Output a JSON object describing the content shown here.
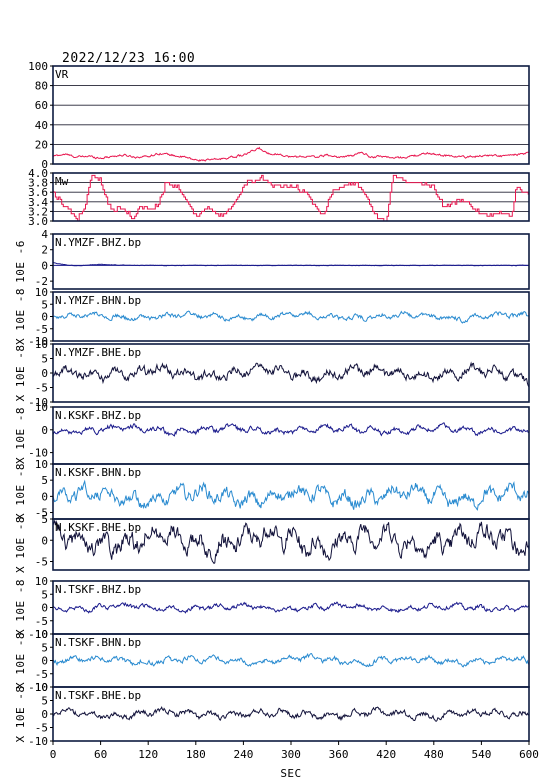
{
  "header": {
    "datetime": "2022/12/23 16:00"
  },
  "chart_data": {
    "type": "line",
    "x": {
      "label": "SEC",
      "lim": [
        0,
        600
      ],
      "ticks": [
        0,
        60,
        120,
        180,
        240,
        300,
        360,
        420,
        480,
        540,
        600
      ]
    },
    "colors": {
      "red": "#e8174f",
      "navy": "#1a1a8c",
      "blue": "#2a8bd0",
      "dark": "#12123a",
      "frame": "#0d1a40"
    },
    "panels": [
      {
        "label": "VR",
        "ylim": [
          0,
          100
        ],
        "yticks": [
          "100",
          "80",
          "60",
          "40",
          "20",
          "0"
        ],
        "ytickvals": [
          100,
          80,
          60,
          40,
          20,
          0
        ],
        "grid": true,
        "unit": "",
        "color": "red",
        "knots": [
          [
            0,
            8
          ],
          [
            15,
            10
          ],
          [
            30,
            7
          ],
          [
            45,
            8
          ],
          [
            60,
            6
          ],
          [
            75,
            8
          ],
          [
            90,
            9
          ],
          [
            105,
            7
          ],
          [
            120,
            8
          ],
          [
            135,
            11
          ],
          [
            150,
            9
          ],
          [
            165,
            7
          ],
          [
            180,
            4
          ],
          [
            195,
            4
          ],
          [
            210,
            5
          ],
          [
            225,
            7
          ],
          [
            240,
            9
          ],
          [
            260,
            16
          ],
          [
            270,
            11
          ],
          [
            285,
            10
          ],
          [
            300,
            7
          ],
          [
            315,
            8
          ],
          [
            330,
            7
          ],
          [
            345,
            9
          ],
          [
            360,
            7
          ],
          [
            375,
            8
          ],
          [
            390,
            12
          ],
          [
            400,
            7
          ],
          [
            415,
            8
          ],
          [
            430,
            6
          ],
          [
            445,
            7
          ],
          [
            460,
            9
          ],
          [
            475,
            11
          ],
          [
            490,
            9
          ],
          [
            505,
            8
          ],
          [
            520,
            7
          ],
          [
            535,
            8
          ],
          [
            550,
            9
          ],
          [
            565,
            8
          ],
          [
            580,
            9
          ],
          [
            600,
            11
          ]
        ],
        "noise": 1.2
      },
      {
        "label": "Mw",
        "ylim": [
          3.0,
          4.0
        ],
        "yticks": [
          "4.0",
          "3.8",
          "3.6",
          "3.4",
          "3.2",
          "3.0"
        ],
        "ytickvals": [
          4.0,
          3.8,
          3.6,
          3.4,
          3.2,
          3.0
        ],
        "grid": true,
        "unit": "",
        "color": "red",
        "step": true,
        "knots": [
          [
            0,
            3.6
          ],
          [
            10,
            3.4
          ],
          [
            22,
            3.2
          ],
          [
            30,
            3.0
          ],
          [
            40,
            3.3
          ],
          [
            48,
            3.95
          ],
          [
            58,
            3.9
          ],
          [
            66,
            3.5
          ],
          [
            74,
            3.2
          ],
          [
            86,
            3.3
          ],
          [
            100,
            3.05
          ],
          [
            110,
            3.3
          ],
          [
            124,
            3.2
          ],
          [
            134,
            3.4
          ],
          [
            142,
            3.8
          ],
          [
            158,
            3.7
          ],
          [
            172,
            3.3
          ],
          [
            182,
            3.1
          ],
          [
            196,
            3.3
          ],
          [
            210,
            3.1
          ],
          [
            222,
            3.2
          ],
          [
            232,
            3.5
          ],
          [
            244,
            3.8
          ],
          [
            262,
            3.9
          ],
          [
            280,
            3.7
          ],
          [
            300,
            3.75
          ],
          [
            318,
            3.6
          ],
          [
            330,
            3.3
          ],
          [
            340,
            3.1
          ],
          [
            352,
            3.6
          ],
          [
            362,
            3.7
          ],
          [
            380,
            3.8
          ],
          [
            392,
            3.6
          ],
          [
            400,
            3.3
          ],
          [
            410,
            3.05
          ],
          [
            420,
            3.0
          ],
          [
            428,
            3.95
          ],
          [
            440,
            3.85
          ],
          [
            460,
            3.8
          ],
          [
            480,
            3.7
          ],
          [
            492,
            3.3
          ],
          [
            506,
            3.4
          ],
          [
            520,
            3.4
          ],
          [
            536,
            3.2
          ],
          [
            550,
            3.1
          ],
          [
            566,
            3.2
          ],
          [
            578,
            3.1
          ],
          [
            584,
            3.7
          ],
          [
            600,
            3.55
          ]
        ],
        "noise": 0.05
      },
      {
        "label": "N.YMZF.BHZ.bp",
        "ylim": [
          -3,
          4
        ],
        "yticks": [
          "4",
          "2",
          "0",
          "-2"
        ],
        "ytickvals": [
          4,
          2,
          0,
          -2
        ],
        "grid": false,
        "unit": "10E -6",
        "color": "navy",
        "zero": true,
        "knots": [
          [
            0,
            0.4
          ],
          [
            8,
            0.2
          ],
          [
            18,
            0.05
          ],
          [
            30,
            -0.05
          ],
          [
            45,
            0.05
          ],
          [
            60,
            0.15
          ],
          [
            75,
            0.08
          ],
          [
            90,
            0.02
          ],
          [
            105,
            0
          ],
          [
            600,
            0
          ]
        ],
        "noise": 0.04
      },
      {
        "label": "N.YMZF.BHN.bp",
        "ylim": [
          -10,
          10
        ],
        "yticks": [
          "10",
          "5",
          "0",
          "-5",
          "-10"
        ],
        "ytickvals": [
          10,
          5,
          0,
          -5,
          -10
        ],
        "grid": false,
        "unit": "X 10E -8",
        "color": "blue",
        "knots": [
          [
            0,
            0
          ],
          [
            600,
            0
          ]
        ],
        "noise": 1.0
      },
      {
        "label": "N.YMZF.BHE.bp",
        "ylim": [
          -10,
          10
        ],
        "yticks": [
          "10",
          "5",
          "0",
          "-5",
          "-10"
        ],
        "ytickvals": [
          10,
          5,
          0,
          -5,
          -10
        ],
        "grid": false,
        "unit": "X 10E -8",
        "color": "dark",
        "knots": [
          [
            0,
            0
          ],
          [
            590,
            0
          ],
          [
            600,
            -2
          ]
        ],
        "noise": 1.6
      },
      {
        "label": "N.KSKF.BHZ.bp",
        "ylim": [
          -15,
          10
        ],
        "yticks": [
          "10",
          "0",
          "-10"
        ],
        "ytickvals": [
          10,
          0,
          -10
        ],
        "grid": false,
        "unit": "X 10E -8",
        "color": "navy",
        "knots": [
          [
            0,
            0
          ],
          [
            600,
            0
          ]
        ],
        "noise": 1.2
      },
      {
        "label": "N.KSKF.BHN.bp",
        "ylim": [
          -7,
          10
        ],
        "yticks": [
          "10",
          "5",
          "0",
          "-5"
        ],
        "ytickvals": [
          10,
          5,
          0,
          -5
        ],
        "grid": false,
        "unit": "X 10E -8",
        "color": "blue",
        "knots": [
          [
            0,
            0
          ],
          [
            600,
            0
          ]
        ],
        "noise": 2.0
      },
      {
        "label": "N.KSKF.BHE.bp",
        "ylim": [
          -7,
          5
        ],
        "yticks": [
          "5",
          "0",
          "-5"
        ],
        "ytickvals": [
          5,
          0,
          -5
        ],
        "grid": false,
        "unit": "X 10E -8",
        "color": "dark",
        "knots": [
          [
            0,
            0
          ],
          [
            600,
            0
          ]
        ],
        "noise": 2.2
      },
      {
        "label": "N.TSKF.BHZ.bp",
        "ylim": [
          -10,
          10
        ],
        "yticks": [
          "10",
          "5",
          "0",
          "-5",
          "-10"
        ],
        "ytickvals": [
          10,
          5,
          0,
          -5,
          -10
        ],
        "grid": false,
        "unit": "X 10E -8",
        "color": "navy",
        "knots": [
          [
            0,
            0
          ],
          [
            600,
            0
          ]
        ],
        "noise": 0.9
      },
      {
        "label": "N.TSKF.BHN.bp",
        "ylim": [
          -10,
          10
        ],
        "yticks": [
          "10",
          "5",
          "0",
          "-5",
          "-10"
        ],
        "ytickvals": [
          10,
          5,
          0,
          -5,
          -10
        ],
        "grid": false,
        "unit": "X 10E -8",
        "color": "blue",
        "knots": [
          [
            0,
            0
          ],
          [
            590,
            0
          ],
          [
            600,
            -1.5
          ]
        ],
        "noise": 1.0
      },
      {
        "label": "N.TSKF.BHE.bp",
        "ylim": [
          -10,
          10
        ],
        "yticks": [
          "10",
          "5",
          "0",
          "-5",
          "-10"
        ],
        "ytickvals": [
          10,
          5,
          0,
          -5,
          -10
        ],
        "grid": false,
        "unit": "X 10E -8",
        "color": "dark",
        "knots": [
          [
            0,
            0
          ],
          [
            590,
            0
          ],
          [
            600,
            2
          ]
        ],
        "noise": 1.1
      }
    ]
  }
}
